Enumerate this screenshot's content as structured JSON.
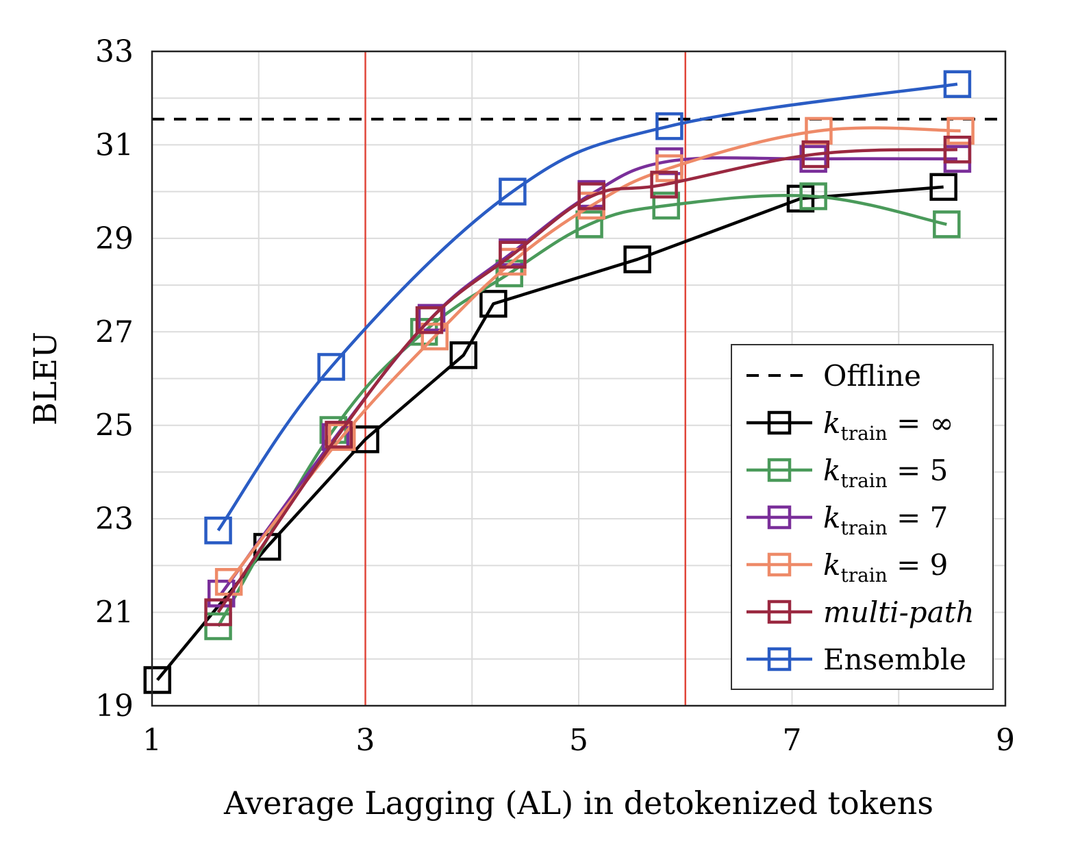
{
  "chart_data": {
    "type": "line",
    "xlabel": "Average Lagging (AL) in detokenized tokens",
    "ylabel": "BLEU",
    "xlim": [
      1,
      9
    ],
    "ylim": [
      19,
      33
    ],
    "xticks": [
      1,
      3,
      5,
      7,
      9
    ],
    "yticks": [
      19,
      21,
      23,
      25,
      27,
      29,
      31,
      33
    ],
    "x_minor_step": 1,
    "y_minor_step": 1,
    "grid": true,
    "vertical_lines": [
      {
        "x": 3,
        "color": "#e0463a"
      },
      {
        "x": 6,
        "color": "#e0463a"
      }
    ],
    "legend_position": "lower-right",
    "offline": {
      "name": "Offline",
      "y": 31.55,
      "color": "#000000",
      "style": "dashed"
    },
    "series": [
      {
        "name": "k_train = ∞",
        "legend": {
          "var": "k",
          "sub": "train",
          "rest": " = ∞"
        },
        "color": "#000000",
        "smooth": false,
        "points": [
          [
            1.05,
            19.55
          ],
          [
            2.08,
            22.4
          ],
          [
            3.0,
            24.7
          ],
          [
            3.92,
            26.5
          ],
          [
            4.2,
            27.6
          ],
          [
            5.55,
            28.55
          ],
          [
            7.08,
            29.85
          ],
          [
            8.42,
            30.1
          ]
        ]
      },
      {
        "name": "k_train = 5",
        "legend": {
          "var": "k",
          "sub": "train",
          "rest": " = 5"
        },
        "color": "#4a9a5a",
        "smooth": true,
        "points": [
          [
            1.62,
            20.7
          ],
          [
            2.7,
            24.9
          ],
          [
            3.55,
            27.0
          ],
          [
            4.35,
            28.25
          ],
          [
            5.1,
            29.3
          ],
          [
            5.82,
            29.7
          ],
          [
            7.2,
            29.9
          ],
          [
            8.45,
            29.3
          ]
        ]
      },
      {
        "name": "k_train = 7",
        "legend": {
          "var": "k",
          "sub": "train",
          "rest": " = 7"
        },
        "color": "#7a2f9a",
        "smooth": true,
        "points": [
          [
            1.65,
            21.4
          ],
          [
            2.72,
            24.75
          ],
          [
            3.62,
            27.3
          ],
          [
            4.38,
            28.7
          ],
          [
            5.12,
            29.95
          ],
          [
            5.85,
            30.65
          ],
          [
            7.2,
            30.7
          ],
          [
            8.55,
            30.7
          ]
        ]
      },
      {
        "name": "k_train = 9",
        "legend": {
          "var": "k",
          "sub": "train",
          "rest": " = 9"
        },
        "color": "#ee8a68",
        "smooth": true,
        "points": [
          [
            1.72,
            21.65
          ],
          [
            2.78,
            24.75
          ],
          [
            3.65,
            26.9
          ],
          [
            4.38,
            28.5
          ],
          [
            5.12,
            29.7
          ],
          [
            5.85,
            30.5
          ],
          [
            7.25,
            31.3
          ],
          [
            8.58,
            31.3
          ]
        ]
      },
      {
        "name": "multi-path",
        "legend": {
          "italic": "multi-path"
        },
        "color": "#9a2840",
        "smooth": true,
        "points": [
          [
            1.62,
            21.0
          ],
          [
            2.75,
            24.8
          ],
          [
            3.6,
            27.25
          ],
          [
            4.38,
            28.65
          ],
          [
            5.12,
            29.9
          ],
          [
            5.8,
            30.15
          ],
          [
            7.22,
            30.8
          ],
          [
            8.55,
            30.9
          ]
        ]
      },
      {
        "name": "Ensemble",
        "legend": {
          "plain": "Ensemble"
        },
        "color": "#2a5cc4",
        "smooth": true,
        "points": [
          [
            1.62,
            22.75
          ],
          [
            2.68,
            26.25
          ],
          [
            4.38,
            30.0
          ],
          [
            5.85,
            31.4
          ],
          [
            8.55,
            32.3
          ]
        ]
      }
    ]
  }
}
